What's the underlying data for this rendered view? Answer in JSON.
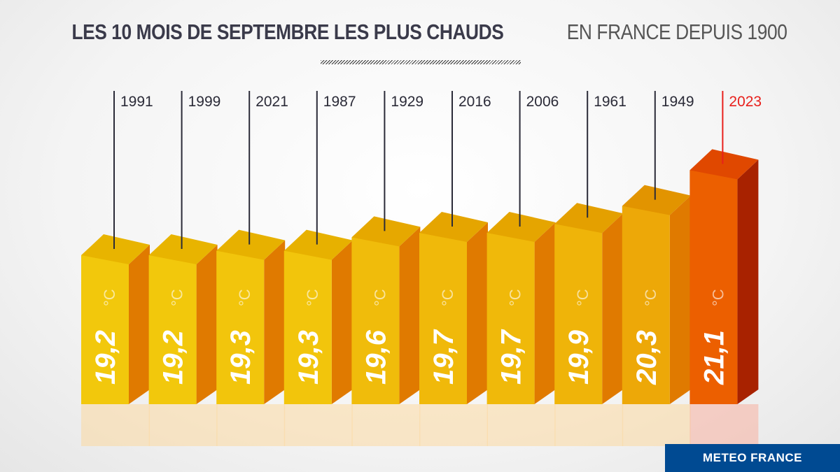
{
  "title": {
    "bold": "LES 10 MOIS DE SEPTEMBRE LES PLUS CHAUDS",
    "light": "EN FRANCE DEPUIS 1900"
  },
  "brand": "METEO FRANCE",
  "chart_data": {
    "type": "bar",
    "title": "LES 10 MOIS DE SEPTEMBRE LES PLUS CHAUDS EN FRANCE DEPUIS 1900",
    "categories": [
      "1991",
      "1999",
      "2021",
      "1987",
      "1929",
      "2016",
      "2006",
      "1961",
      "1949",
      "2023"
    ],
    "values": [
      19.2,
      19.2,
      19.3,
      19.3,
      19.6,
      19.7,
      19.7,
      19.9,
      20.3,
      21.1
    ],
    "value_labels": [
      "19,2",
      "19,2",
      "19,3",
      "19,3",
      "19,6",
      "19,7",
      "19,7",
      "19,9",
      "20,3",
      "21,1"
    ],
    "unit": "°C",
    "highlight": "2023",
    "colors": {
      "yellow": "#f2c80c",
      "orange": "#eda808",
      "highlight": "#ec5f00",
      "highlight_label": "#e8201c",
      "label": "#2b2b38"
    },
    "grid": false,
    "legend": "none"
  }
}
